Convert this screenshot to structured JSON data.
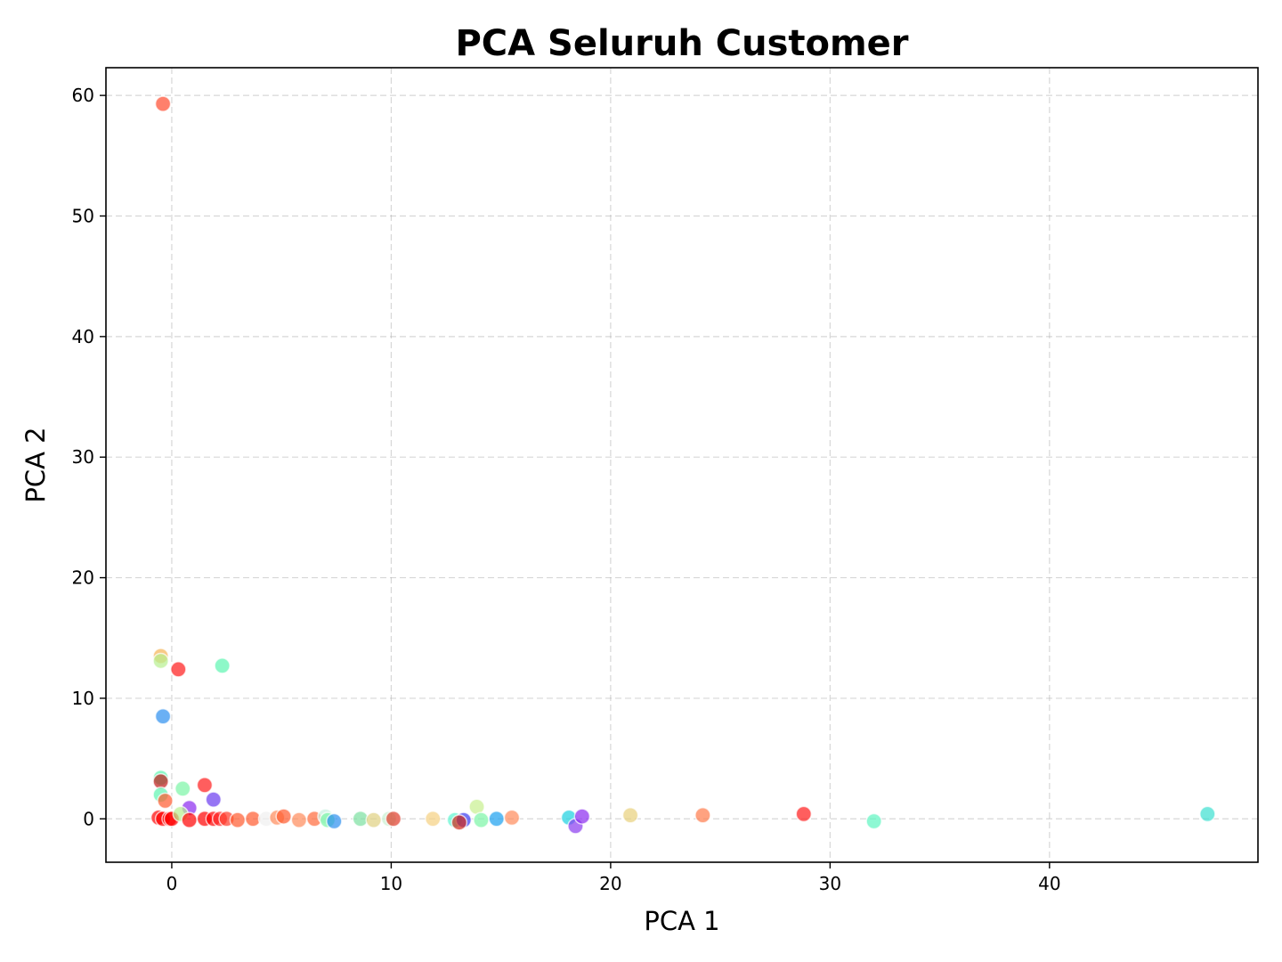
{
  "chart_data": {
    "type": "scatter",
    "title": "PCA Seluruh Customer",
    "xlabel": "PCA 1",
    "ylabel": "PCA 2",
    "xlim": [
      -3,
      49.5
    ],
    "ylim": [
      -3.6,
      62.3
    ],
    "xticks": [
      0,
      10,
      20,
      30,
      40
    ],
    "yticks": [
      0,
      10,
      20,
      30,
      40,
      50,
      60
    ],
    "grid": true,
    "marker_opacity": 0.7,
    "points": [
      {
        "x": -0.4,
        "y": 59.3,
        "color": "#ff4a2e"
      },
      {
        "x": -0.5,
        "y": 13.5,
        "color": "#f5b354"
      },
      {
        "x": -0.5,
        "y": 13.1,
        "color": "#b7f08e"
      },
      {
        "x": 0.3,
        "y": 12.4,
        "color": "#ff1a1a"
      },
      {
        "x": 2.3,
        "y": 12.7,
        "color": "#5cf5b0"
      },
      {
        "x": -0.4,
        "y": 8.5,
        "color": "#2b8ef0"
      },
      {
        "x": -0.5,
        "y": 3.4,
        "color": "#5cf5b0"
      },
      {
        "x": -0.5,
        "y": 3.1,
        "color": "#c01a1a"
      },
      {
        "x": 1.5,
        "y": 2.8,
        "color": "#ff1a1a"
      },
      {
        "x": 0.5,
        "y": 2.5,
        "color": "#7af5a5"
      },
      {
        "x": -0.5,
        "y": 2.0,
        "color": "#5cf5b0"
      },
      {
        "x": -0.3,
        "y": 1.5,
        "color": "#ff5a2e"
      },
      {
        "x": 1.9,
        "y": 1.6,
        "color": "#6a3af0"
      },
      {
        "x": 0.8,
        "y": 0.9,
        "color": "#8a2af0"
      },
      {
        "x": -0.6,
        "y": 0.1,
        "color": "#ff0000"
      },
      {
        "x": -0.4,
        "y": 0.0,
        "color": "#ff0000"
      },
      {
        "x": -0.1,
        "y": 0.0,
        "color": "#ff0000"
      },
      {
        "x": 0.0,
        "y": 0.0,
        "color": "#ff0000"
      },
      {
        "x": 0.4,
        "y": 0.4,
        "color": "#b7f08e"
      },
      {
        "x": 0.8,
        "y": -0.1,
        "color": "#ff0000"
      },
      {
        "x": 1.5,
        "y": 0.0,
        "color": "#ff0000"
      },
      {
        "x": 1.9,
        "y": 0.0,
        "color": "#ff0000"
      },
      {
        "x": 2.2,
        "y": 0.0,
        "color": "#ff2a2a"
      },
      {
        "x": 2.5,
        "y": 0.0,
        "color": "#ff3a2a"
      },
      {
        "x": 3.0,
        "y": -0.1,
        "color": "#ff5a2e"
      },
      {
        "x": 3.7,
        "y": 0.0,
        "color": "#ff5a2e"
      },
      {
        "x": 4.3,
        "y": 0.0,
        "color": "#f0f0f0"
      },
      {
        "x": 4.8,
        "y": 0.1,
        "color": "#ff8a5a"
      },
      {
        "x": 5.1,
        "y": 0.2,
        "color": "#ff5a2e"
      },
      {
        "x": 5.8,
        "y": -0.1,
        "color": "#ff8a5a"
      },
      {
        "x": 6.5,
        "y": 0.0,
        "color": "#ff6a3a"
      },
      {
        "x": 7.0,
        "y": 0.2,
        "color": "#c8f0e0"
      },
      {
        "x": 7.1,
        "y": -0.1,
        "color": "#7af5a5"
      },
      {
        "x": 7.4,
        "y": -0.2,
        "color": "#2b8ef0"
      },
      {
        "x": 8.6,
        "y": 0.0,
        "color": "#7ae0a0"
      },
      {
        "x": 9.2,
        "y": -0.1,
        "color": "#e0d080"
      },
      {
        "x": 9.9,
        "y": 0.0,
        "color": "#c8f0d0"
      },
      {
        "x": 10.1,
        "y": 0.0,
        "color": "#e03a2a"
      },
      {
        "x": 11.9,
        "y": 0.0,
        "color": "#f5d080"
      },
      {
        "x": 12.9,
        "y": -0.1,
        "color": "#5cf5d0"
      },
      {
        "x": 13.3,
        "y": -0.1,
        "color": "#3a3af0"
      },
      {
        "x": 13.1,
        "y": -0.3,
        "color": "#d02a1a"
      },
      {
        "x": 13.9,
        "y": 1.0,
        "color": "#c8f08e"
      },
      {
        "x": 14.1,
        "y": -0.1,
        "color": "#7af5a5"
      },
      {
        "x": 14.8,
        "y": 0.0,
        "color": "#1aa0f0"
      },
      {
        "x": 15.5,
        "y": 0.1,
        "color": "#ff8a5a"
      },
      {
        "x": 18.1,
        "y": 0.1,
        "color": "#1ad0e0"
      },
      {
        "x": 18.4,
        "y": -0.6,
        "color": "#8a3af0"
      },
      {
        "x": 18.7,
        "y": 0.2,
        "color": "#8a2af0"
      },
      {
        "x": 20.9,
        "y": 0.3,
        "color": "#e8d07a"
      },
      {
        "x": 24.2,
        "y": 0.3,
        "color": "#ff7a4a"
      },
      {
        "x": 28.8,
        "y": 0.4,
        "color": "#ff1a1a"
      },
      {
        "x": 32.0,
        "y": -0.2,
        "color": "#5cf5c0"
      },
      {
        "x": 47.2,
        "y": 0.4,
        "color": "#3ae0d0"
      }
    ]
  }
}
